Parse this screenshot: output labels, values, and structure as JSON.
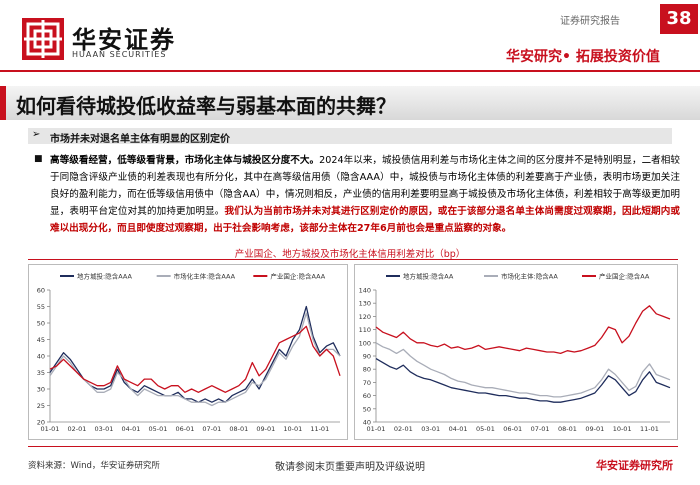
{
  "header": {
    "logo_cn": "华安证券",
    "logo_en": "HUAAN SECURITIES",
    "report_type": "证券研究报告",
    "page": 38,
    "slogan": "华安研究• 拓展投资价值"
  },
  "title": "如何看待城投低收益率与弱基本面的共舞？",
  "section": "市场并未对退名单主体有明显的区别定价",
  "paragraph": [
    {
      "text": "高等级看经营，低等级看背景，市场化主体与城投区分度不大。",
      "bold": true,
      "color": "#000000"
    },
    {
      "text": "2024年以来，城投债信用利差与市场化主体之间的区分度并不是特别明显，二者相较于同隐含评级产业债的利差表现也有所分化，其中在高等级信用债（隐含AAA）中，城投债与市场化主体债的利差要高于产业债，表明市场更加关注良好的盈利能力，而在低等级信用债中（隐含AA）中，情况则相反，产业债的信用利差要明显高于城投债及市场化主体债，利差相较于高等级更加明显，表明平台定位对其的加持更加明显。",
      "bold": false,
      "color": "#000000"
    },
    {
      "text": "我们认为当前市场并未对其进行区别定价的原因，或在于该部分退名单主体尚需度过观察期，因此短期内或难以出现分化，而且即使度过观察期，出于社会影响考虑，该部分主体在27年6月前也会是重点监察的对象。",
      "bold": true,
      "color": "#c00000"
    }
  ],
  "figure_caption": "产业国企、地方城投及市场化主体信用利差对比（bp）",
  "chart_data": [
    {
      "type": "line",
      "categories": [
        "01-01",
        null,
        null,
        null,
        "02-01",
        null,
        null,
        null,
        "03-01",
        null,
        null,
        null,
        "04-01",
        null,
        null,
        null,
        "05-01",
        null,
        null,
        null,
        "06-01",
        null,
        null,
        null,
        "07-01",
        null,
        null,
        null,
        "08-01",
        null,
        null,
        null,
        "09-01",
        null,
        null,
        null,
        "10-01",
        null,
        null,
        null,
        "11-01",
        null,
        null,
        null
      ],
      "series": [
        {
          "name": "地方城投:隐含AAA",
          "color": "#1f2d5c",
          "values": [
            35,
            38,
            41,
            39,
            36,
            33,
            31,
            30,
            30,
            31,
            36,
            32,
            30,
            29,
            31,
            30,
            29,
            28,
            28,
            29,
            27,
            27,
            26,
            27,
            26,
            27,
            26,
            28,
            29,
            30,
            33,
            30,
            34,
            38,
            42,
            40,
            45,
            48,
            55,
            46,
            41,
            43,
            44,
            40
          ]
        },
        {
          "name": "市场化主体:隐含AAA",
          "color": "#a9adb8",
          "values": [
            34,
            37,
            40,
            38,
            35,
            33,
            31,
            29,
            29,
            30,
            35,
            33,
            30,
            28,
            30,
            29,
            28,
            28,
            28,
            28,
            27,
            26,
            26,
            26,
            25,
            26,
            26,
            27,
            28,
            29,
            32,
            31,
            33,
            37,
            41,
            39,
            43,
            46,
            53,
            45,
            40,
            42,
            42,
            40
          ]
        },
        {
          "name": "产业国企:隐含AAA",
          "color": "#c8101e",
          "values": [
            36,
            37,
            39,
            37,
            35,
            33,
            32,
            31,
            31,
            32,
            37,
            33,
            32,
            31,
            33,
            33,
            31,
            30,
            31,
            31,
            29,
            30,
            29,
            30,
            31,
            30,
            29,
            30,
            31,
            33,
            38,
            34,
            36,
            40,
            44,
            45,
            46,
            47,
            49,
            43,
            40,
            42,
            40,
            34
          ]
        }
      ],
      "ylim": [
        20,
        60
      ],
      "yticks": [
        20,
        25,
        30,
        35,
        40,
        45,
        50,
        55,
        60
      ],
      "grid": false,
      "legend": "top"
    },
    {
      "type": "line",
      "categories": [
        "01-01",
        null,
        null,
        null,
        "02-01",
        null,
        null,
        null,
        "03-01",
        null,
        null,
        null,
        "04-01",
        null,
        null,
        null,
        "05-01",
        null,
        null,
        null,
        "06-01",
        null,
        null,
        null,
        "07-01",
        null,
        null,
        null,
        "08-01",
        null,
        null,
        null,
        "09-01",
        null,
        null,
        null,
        "10-01",
        null,
        null,
        null,
        "11-01",
        null,
        null,
        null
      ],
      "series": [
        {
          "name": "地方城投:隐含AA",
          "color": "#1f2d5c",
          "values": [
            88,
            85,
            82,
            80,
            83,
            78,
            75,
            73,
            72,
            70,
            68,
            66,
            65,
            64,
            63,
            62,
            62,
            61,
            60,
            60,
            59,
            58,
            58,
            57,
            56,
            56,
            55,
            55,
            56,
            57,
            58,
            60,
            62,
            68,
            75,
            72,
            66,
            60,
            63,
            72,
            78,
            70,
            68,
            66
          ]
        },
        {
          "name": "市场化主体:隐含AA",
          "color": "#a9adb8",
          "values": [
            100,
            97,
            95,
            92,
            95,
            90,
            86,
            83,
            80,
            78,
            76,
            73,
            71,
            70,
            68,
            67,
            66,
            66,
            65,
            64,
            63,
            62,
            62,
            61,
            60,
            60,
            59,
            59,
            60,
            61,
            62,
            64,
            66,
            72,
            80,
            76,
            70,
            64,
            67,
            78,
            84,
            76,
            74,
            72
          ]
        },
        {
          "name": "产业国企:隐含AA",
          "color": "#c8101e",
          "values": [
            112,
            108,
            106,
            104,
            108,
            103,
            100,
            100,
            98,
            97,
            99,
            96,
            97,
            95,
            96,
            98,
            95,
            96,
            97,
            96,
            95,
            94,
            96,
            95,
            94,
            93,
            93,
            92,
            94,
            93,
            94,
            96,
            98,
            104,
            112,
            110,
            100,
            105,
            115,
            124,
            128,
            122,
            120,
            118
          ]
        }
      ],
      "ylim": [
        40,
        140
      ],
      "yticks": [
        40,
        50,
        60,
        70,
        80,
        90,
        100,
        110,
        120,
        130,
        140
      ],
      "grid": false,
      "legend": "top"
    }
  ],
  "footer": {
    "source": "资料来源：Wind，华安证券研究所",
    "disclaimer": "敬请参阅末页重要声明及评级说明",
    "brand": "华安证券研究所"
  }
}
